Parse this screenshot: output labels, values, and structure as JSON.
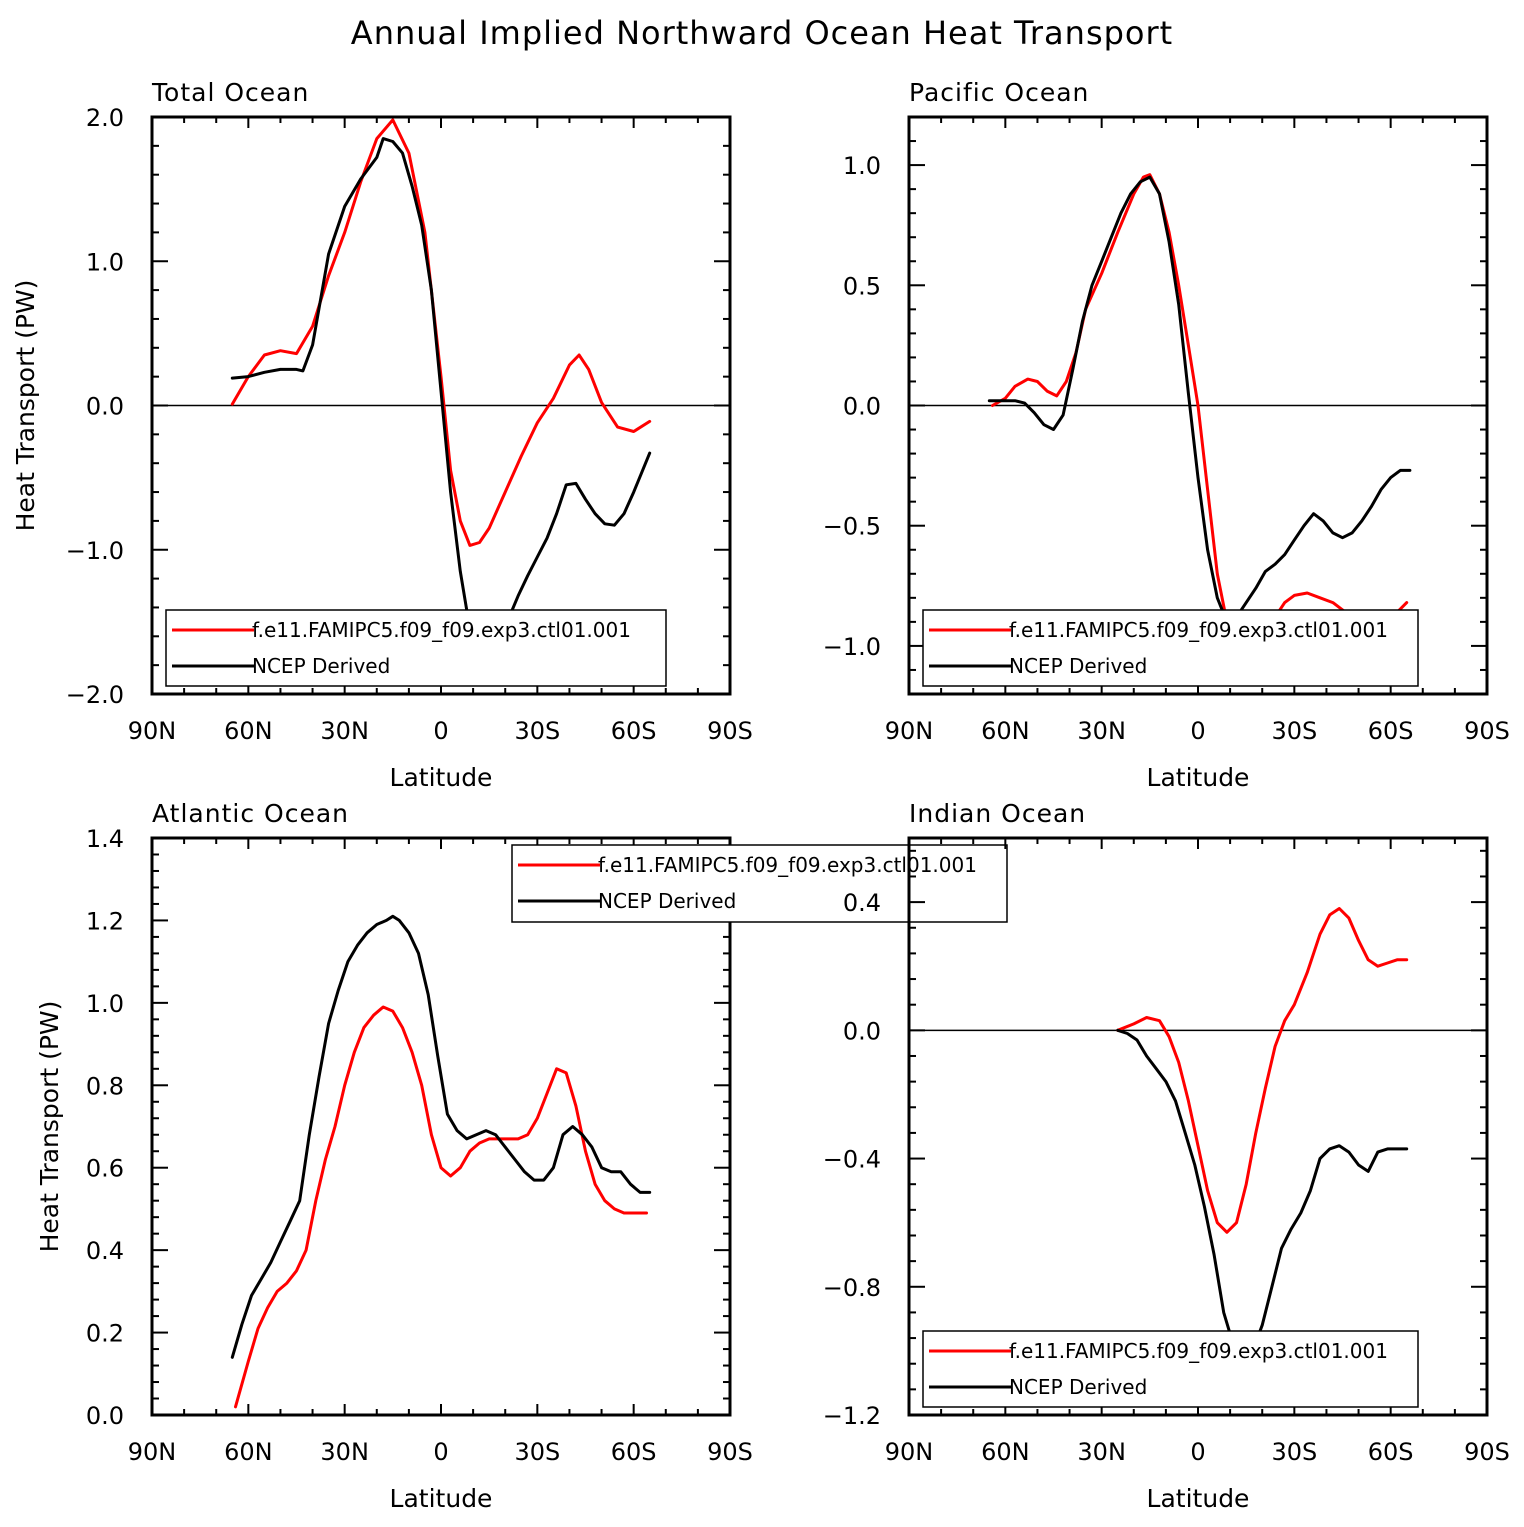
{
  "title": "Annual Implied Northward Ocean Heat Transport",
  "colors": {
    "model": "#ff0000",
    "obs": "#000000",
    "zero": "#000000"
  },
  "chart_data": [
    {
      "type": "line",
      "panel_title": "Total Ocean",
      "xlabel": "Latitude",
      "ylabel": "Heat Transport (PW)",
      "xlim": [
        90,
        -90
      ],
      "ylim": [
        -2.0,
        2.0
      ],
      "xticks": [
        90,
        60,
        30,
        0,
        -30,
        -60,
        -90
      ],
      "xtick_labels": [
        "90N",
        "60N",
        "30N",
        "0",
        "30S",
        "60S",
        "90S"
      ],
      "yticks": [
        2.0,
        1.0,
        0.0,
        -1.0,
        -2.0
      ],
      "ytick_labels": [
        "2.0",
        "1.0",
        "0.0",
        "−1.0",
        "−2.0"
      ],
      "legend_position": "bottom-left",
      "series": [
        {
          "name": "f.e11.FAMIPC5.f09_f09.exp3.ctl01.001",
          "color": "model",
          "x": [
            65,
            60,
            55,
            50,
            45,
            40,
            35,
            30,
            25,
            20,
            15,
            10,
            5,
            0,
            -3,
            -6,
            -9,
            -12,
            -15,
            -20,
            -25,
            -30,
            -35,
            -40,
            -43,
            -46,
            -50,
            -55,
            -60,
            -65
          ],
          "y": [
            0.01,
            0.2,
            0.35,
            0.38,
            0.36,
            0.55,
            0.9,
            1.2,
            1.55,
            1.85,
            1.98,
            1.75,
            1.2,
            0.2,
            -0.45,
            -0.8,
            -0.97,
            -0.95,
            -0.85,
            -0.6,
            -0.35,
            -0.12,
            0.05,
            0.28,
            0.35,
            0.25,
            0.02,
            -0.15,
            -0.18,
            -0.11
          ]
        },
        {
          "name": "NCEP Derived",
          "color": "obs",
          "x": [
            65,
            60,
            55,
            50,
            45,
            43,
            40,
            35,
            30,
            25,
            20,
            18,
            15,
            12,
            9,
            6,
            3,
            0,
            -3,
            -6,
            -9,
            -12,
            -15,
            -18,
            -21,
            -24,
            -27,
            -30,
            -33,
            -36,
            -39,
            -42,
            -45,
            -48,
            -51,
            -54,
            -57,
            -60,
            -65
          ],
          "y": [
            0.19,
            0.2,
            0.23,
            0.25,
            0.25,
            0.24,
            0.42,
            1.05,
            1.38,
            1.57,
            1.72,
            1.85,
            1.83,
            1.75,
            1.52,
            1.25,
            0.8,
            0.1,
            -0.6,
            -1.15,
            -1.55,
            -1.65,
            -1.68,
            -1.6,
            -1.48,
            -1.32,
            -1.18,
            -1.05,
            -0.92,
            -0.75,
            -0.55,
            -0.54,
            -0.65,
            -0.75,
            -0.82,
            -0.83,
            -0.75,
            -0.6,
            -0.33
          ]
        }
      ]
    },
    {
      "type": "line",
      "panel_title": "Pacific Ocean",
      "xlabel": "Latitude",
      "ylabel": "",
      "xlim": [
        90,
        -90
      ],
      "ylim": [
        -1.2,
        1.2
      ],
      "xticks": [
        90,
        60,
        30,
        0,
        -30,
        -60,
        -90
      ],
      "xtick_labels": [
        "90N",
        "60N",
        "30N",
        "0",
        "30S",
        "60S",
        "90S"
      ],
      "yticks": [
        1.0,
        0.5,
        0.0,
        -0.5,
        -1.0
      ],
      "ytick_labels": [
        "1.0",
        "0.5",
        "0.0",
        "−0.5",
        "−1.0"
      ],
      "legend_position": "bottom-left",
      "series": [
        {
          "name": "f.e11.FAMIPC5.f09_f09.exp3.ctl01.001",
          "color": "model",
          "x": [
            64,
            60,
            57,
            53,
            50,
            47,
            44,
            41,
            38,
            35,
            30,
            25,
            20,
            17,
            15,
            12,
            9,
            6,
            3,
            0,
            -3,
            -6,
            -9,
            -12,
            -15,
            -18,
            -21,
            -24,
            -27,
            -30,
            -34,
            -38,
            -42,
            -46,
            -50,
            -54,
            -58,
            -62,
            -65
          ],
          "y": [
            0.0,
            0.03,
            0.08,
            0.11,
            0.1,
            0.06,
            0.04,
            0.1,
            0.22,
            0.4,
            0.55,
            0.72,
            0.88,
            0.95,
            0.96,
            0.88,
            0.72,
            0.5,
            0.25,
            0.0,
            -0.35,
            -0.7,
            -0.9,
            -1.0,
            -1.03,
            -1.0,
            -0.95,
            -0.88,
            -0.82,
            -0.79,
            -0.78,
            -0.8,
            -0.82,
            -0.86,
            -0.88,
            -0.87,
            -0.88,
            -0.86,
            -0.82
          ]
        },
        {
          "name": "NCEP Derived",
          "color": "obs",
          "x": [
            65,
            60,
            57,
            54,
            51,
            48,
            45,
            42,
            39,
            36,
            33,
            30,
            27,
            24,
            21,
            18,
            15,
            12,
            9,
            6,
            3,
            0,
            -3,
            -6,
            -9,
            -12,
            -15,
            -18,
            -21,
            -24,
            -27,
            -30,
            -33,
            -36,
            -39,
            -42,
            -45,
            -48,
            -51,
            -54,
            -57,
            -60,
            -63,
            -66
          ],
          "y": [
            0.02,
            0.02,
            0.02,
            0.01,
            -0.03,
            -0.08,
            -0.1,
            -0.04,
            0.15,
            0.35,
            0.5,
            0.6,
            0.7,
            0.8,
            0.88,
            0.93,
            0.95,
            0.88,
            0.68,
            0.42,
            0.05,
            -0.3,
            -0.6,
            -0.8,
            -0.9,
            -0.88,
            -0.82,
            -0.76,
            -0.69,
            -0.66,
            -0.62,
            -0.56,
            -0.5,
            -0.45,
            -0.48,
            -0.53,
            -0.55,
            -0.53,
            -0.48,
            -0.42,
            -0.35,
            -0.3,
            -0.27,
            -0.27
          ]
        }
      ]
    },
    {
      "type": "line",
      "panel_title": "Atlantic Ocean",
      "xlabel": "Latitude",
      "ylabel": "Heat Transport (PW)",
      "xlim": [
        90,
        -90
      ],
      "ylim": [
        0.0,
        1.4
      ],
      "xticks": [
        90,
        60,
        30,
        0,
        -30,
        -60,
        -90
      ],
      "xtick_labels": [
        "90N",
        "60N",
        "30N",
        "0",
        "30S",
        "60S",
        "90S"
      ],
      "yticks": [
        0.0,
        0.2,
        0.4,
        0.6,
        0.8,
        1.0,
        1.2,
        1.4
      ],
      "ytick_labels": [
        "0.0",
        "0.2",
        "0.4",
        "0.6",
        "0.8",
        "1.0",
        "1.2",
        "1.4"
      ],
      "legend_position": "top-center",
      "series": [
        {
          "name": "f.e11.FAMIPC5.f09_f09.exp3.ctl01.001",
          "color": "model",
          "x": [
            64,
            60,
            57,
            54,
            51,
            48,
            45,
            42,
            39,
            36,
            33,
            30,
            27,
            24,
            21,
            18,
            15,
            12,
            9,
            6,
            3,
            0,
            -3,
            -6,
            -9,
            -12,
            -15,
            -18,
            -21,
            -24,
            -27,
            -30,
            -33,
            -36,
            -39,
            -42,
            -45,
            -48,
            -51,
            -54,
            -57,
            -60,
            -64
          ],
          "y": [
            0.02,
            0.13,
            0.21,
            0.26,
            0.3,
            0.32,
            0.35,
            0.4,
            0.52,
            0.62,
            0.7,
            0.8,
            0.88,
            0.94,
            0.97,
            0.99,
            0.98,
            0.94,
            0.88,
            0.8,
            0.68,
            0.6,
            0.58,
            0.6,
            0.64,
            0.66,
            0.67,
            0.67,
            0.67,
            0.67,
            0.68,
            0.72,
            0.78,
            0.84,
            0.83,
            0.75,
            0.64,
            0.56,
            0.52,
            0.5,
            0.49,
            0.49,
            0.49
          ]
        },
        {
          "name": "NCEP Derived",
          "color": "obs",
          "x": [
            65,
            62,
            59,
            56,
            53,
            50,
            47,
            44,
            41,
            38,
            35,
            32,
            29,
            26,
            23,
            20,
            17,
            15,
            13,
            10,
            7,
            4,
            1,
            -2,
            -5,
            -8,
            -11,
            -14,
            -17,
            -20,
            -23,
            -26,
            -29,
            -32,
            -35,
            -38,
            -41,
            -44,
            -47,
            -50,
            -53,
            -56,
            -59,
            -62,
            -65
          ],
          "y": [
            0.14,
            0.22,
            0.29,
            0.33,
            0.37,
            0.42,
            0.47,
            0.52,
            0.68,
            0.82,
            0.95,
            1.03,
            1.1,
            1.14,
            1.17,
            1.19,
            1.2,
            1.21,
            1.2,
            1.17,
            1.12,
            1.02,
            0.87,
            0.73,
            0.69,
            0.67,
            0.68,
            0.69,
            0.68,
            0.65,
            0.62,
            0.59,
            0.57,
            0.57,
            0.6,
            0.68,
            0.7,
            0.68,
            0.65,
            0.6,
            0.59,
            0.59,
            0.56,
            0.54,
            0.54
          ]
        }
      ]
    },
    {
      "type": "line",
      "panel_title": "Indian Ocean",
      "xlabel": "Latitude",
      "ylabel": "",
      "xlim": [
        90,
        -90
      ],
      "ylim": [
        -1.2,
        0.6
      ],
      "xticks": [
        90,
        60,
        30,
        0,
        -30,
        -60,
        -90
      ],
      "xtick_labels": [
        "90N",
        "60N",
        "30N",
        "0",
        "30S",
        "60S",
        "90S"
      ],
      "yticks": [
        0.4,
        0.0,
        -0.4,
        -0.8,
        -1.2
      ],
      "ytick_labels": [
        "0.4",
        "0.0",
        "−0.4",
        "−0.8",
        "−1.2"
      ],
      "legend_position": "bottom-left",
      "series": [
        {
          "name": "f.e11.FAMIPC5.f09_f09.exp3.ctl01.001",
          "color": "model",
          "x": [
            25,
            20,
            16,
            12,
            9,
            6,
            3,
            0,
            -3,
            -6,
            -9,
            -12,
            -15,
            -18,
            -21,
            -24,
            -27,
            -30,
            -34,
            -38,
            -41,
            -44,
            -47,
            -50,
            -53,
            -56,
            -59,
            -62,
            -65
          ],
          "y": [
            0.0,
            0.02,
            0.04,
            0.03,
            -0.02,
            -0.1,
            -0.22,
            -0.36,
            -0.5,
            -0.6,
            -0.63,
            -0.6,
            -0.48,
            -0.32,
            -0.18,
            -0.05,
            0.03,
            0.08,
            0.18,
            0.3,
            0.36,
            0.38,
            0.35,
            0.28,
            0.22,
            0.2,
            0.21,
            0.22,
            0.22
          ]
        },
        {
          "name": "NCEP Derived",
          "color": "obs",
          "x": [
            25,
            22,
            19,
            16,
            13,
            10,
            7,
            4,
            1,
            -2,
            -5,
            -8,
            -11,
            -14,
            -17,
            -20,
            -23,
            -26,
            -29,
            -32,
            -35,
            -38,
            -41,
            -44,
            -47,
            -50,
            -53,
            -56,
            -59,
            -62,
            -65
          ],
          "y": [
            0.0,
            -0.01,
            -0.03,
            -0.08,
            -0.12,
            -0.16,
            -0.22,
            -0.32,
            -0.42,
            -0.55,
            -0.7,
            -0.88,
            -0.98,
            -1.05,
            -1.0,
            -0.92,
            -0.8,
            -0.68,
            -0.62,
            -0.57,
            -0.5,
            -0.4,
            -0.37,
            -0.36,
            -0.38,
            -0.42,
            -0.44,
            -0.38,
            -0.37,
            -0.37,
            -0.37
          ]
        }
      ]
    }
  ]
}
